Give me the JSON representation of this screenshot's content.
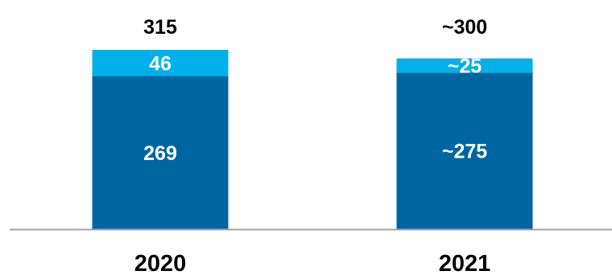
{
  "chart_data": {
    "type": "bar",
    "stacked": true,
    "categories": [
      "2020",
      "2021"
    ],
    "series": [
      {
        "values": [
          269,
          275
        ],
        "labels": [
          "269",
          "~275"
        ],
        "color": "#0066a1"
      },
      {
        "values": [
          46,
          25
        ],
        "labels": [
          "46",
          "~25"
        ],
        "color": "#00b0ea"
      }
    ],
    "totals": [
      "315",
      "~300"
    ],
    "ylim": [
      0,
      315
    ],
    "grid": false,
    "legend": "none"
  }
}
